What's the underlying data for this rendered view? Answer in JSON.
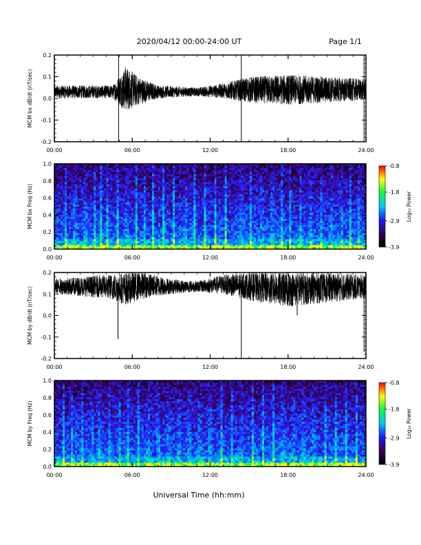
{
  "header": {
    "title": "2020/04/12  00:00-24:00 UT",
    "page": "Page 1/1"
  },
  "footer": {
    "xlabel": "Universal Time (hh:mm)"
  },
  "chart_data": [
    {
      "type": "line",
      "ylabel": "MCM bx dB/dt (nT/sec)",
      "xlim": [
        0,
        24
      ],
      "ylim": [
        -0.2,
        0.2
      ],
      "xticks": [
        "00:00",
        "06:00",
        "12:00",
        "18:00",
        "24:00"
      ],
      "yticks": [
        "-0.2",
        "-0.1",
        "0.0",
        "0.1",
        "0.2"
      ],
      "baseline": 0.03,
      "envelope": [
        {
          "x": 0,
          "lo": 0.0,
          "hi": 0.06
        },
        {
          "x": 4.5,
          "lo": 0.0,
          "hi": 0.06
        },
        {
          "x": 5.5,
          "lo": -0.06,
          "hi": 0.15
        },
        {
          "x": 6.5,
          "lo": -0.03,
          "hi": 0.1
        },
        {
          "x": 8.0,
          "lo": 0.0,
          "hi": 0.06
        },
        {
          "x": 11.0,
          "lo": 0.01,
          "hi": 0.05
        },
        {
          "x": 13.0,
          "lo": 0.0,
          "hi": 0.07
        },
        {
          "x": 15.0,
          "lo": -0.02,
          "hi": 0.1
        },
        {
          "x": 18.0,
          "lo": -0.03,
          "hi": 0.11
        },
        {
          "x": 21.0,
          "lo": -0.02,
          "hi": 0.1
        },
        {
          "x": 24.0,
          "lo": -0.01,
          "hi": 0.09
        }
      ],
      "spikes": [
        {
          "x": 4.95,
          "y": -0.2
        },
        {
          "x": 4.95,
          "y": 0.21
        },
        {
          "x": 14.4,
          "y": -0.2
        },
        {
          "x": 14.4,
          "y": 0.21
        },
        {
          "x": 23.85,
          "y": -0.2
        },
        {
          "x": 23.85,
          "y": 0.21
        }
      ]
    },
    {
      "type": "heatmap",
      "ylabel": "MCM bx Freq (Hz)",
      "xlim": [
        0,
        24
      ],
      "ylim": [
        0,
        1.0
      ],
      "xticks": [
        "00:00",
        "06:00",
        "12:00",
        "18:00",
        "24:00"
      ],
      "yticks": [
        "0.0",
        "0.2",
        "0.4",
        "0.6",
        "0.8",
        "1.0"
      ],
      "colorbar": {
        "label": "Log₁₀ Power",
        "range": [
          -3.9,
          -0.8
        ],
        "ticks": [
          "-0.8",
          "-1.8",
          "-2.9",
          "-3.9"
        ],
        "tick_values": [
          -0.8,
          -1.8,
          -2.9,
          -3.9
        ],
        "colors": [
          "#000000",
          "#3a0055",
          "#1a1aff",
          "#00c8ff",
          "#00ff40",
          "#ffff00",
          "#ff0000"
        ]
      },
      "bright_streaks_hours": [
        0.9,
        1.6,
        2.4,
        3.1,
        3.6,
        4.1,
        4.9,
        5.6,
        6.3,
        7.0,
        7.6,
        8.4,
        9.2,
        10.1,
        10.8,
        11.6,
        12.4,
        13.2,
        14.4,
        15.1,
        16.0,
        16.8,
        17.5,
        18.2,
        19.0,
        19.7,
        20.6,
        21.3,
        22.1,
        22.8,
        23.5
      ]
    },
    {
      "type": "line",
      "ylabel": "MCM by dB/dt (nT/sec)",
      "xlim": [
        0,
        24
      ],
      "ylim": [
        -0.2,
        0.2
      ],
      "xticks": [
        "00:00",
        "06:00",
        "12:00",
        "18:00",
        "24:00"
      ],
      "yticks": [
        "-0.2",
        "-0.1",
        "0.0",
        "0.1",
        "0.2"
      ],
      "baseline": 0.13,
      "envelope": [
        {
          "x": 0,
          "lo": 0.1,
          "hi": 0.17
        },
        {
          "x": 4.0,
          "lo": 0.08,
          "hi": 0.19
        },
        {
          "x": 5.5,
          "lo": 0.05,
          "hi": 0.2
        },
        {
          "x": 7.0,
          "lo": 0.08,
          "hi": 0.2
        },
        {
          "x": 9.0,
          "lo": 0.1,
          "hi": 0.17
        },
        {
          "x": 11.0,
          "lo": 0.11,
          "hi": 0.16
        },
        {
          "x": 13.0,
          "lo": 0.1,
          "hi": 0.19
        },
        {
          "x": 15.0,
          "lo": 0.07,
          "hi": 0.2
        },
        {
          "x": 18.0,
          "lo": 0.04,
          "hi": 0.2
        },
        {
          "x": 21.0,
          "lo": 0.06,
          "hi": 0.2
        },
        {
          "x": 24.0,
          "lo": 0.08,
          "hi": 0.19
        }
      ],
      "spikes": [
        {
          "x": 4.9,
          "y": -0.11
        },
        {
          "x": 14.4,
          "y": -0.2
        },
        {
          "x": 23.85,
          "y": -0.17
        },
        {
          "x": 18.7,
          "y": 0.0
        }
      ]
    },
    {
      "type": "heatmap",
      "ylabel": "MCM by Freq (Hz)",
      "xlim": [
        0,
        24
      ],
      "ylim": [
        0,
        1.0
      ],
      "xticks": [
        "00:00",
        "06:00",
        "12:00",
        "18:00",
        "24:00"
      ],
      "yticks": [
        "0.0",
        "0.2",
        "0.4",
        "0.6",
        "0.8",
        "1.0"
      ],
      "colorbar": {
        "label": "Log₁₀ Power",
        "range": [
          -3.9,
          -0.8
        ],
        "ticks": [
          "-0.8",
          "-1.8",
          "-2.9",
          "-3.9"
        ],
        "tick_values": [
          -0.8,
          -1.8,
          -2.9,
          -3.9
        ],
        "colors": [
          "#000000",
          "#3a0055",
          "#1a1aff",
          "#00c8ff",
          "#00ff40",
          "#ffff00",
          "#ff0000"
        ]
      },
      "bright_streaks_hours": [
        0.7,
        1.4,
        2.2,
        2.9,
        3.5,
        4.3,
        5.0,
        5.7,
        6.5,
        7.2,
        8.0,
        8.8,
        9.6,
        10.4,
        11.2,
        12.0,
        12.9,
        13.7,
        14.4,
        15.3,
        16.1,
        16.9,
        17.6,
        18.4,
        19.2,
        20.0,
        20.9,
        21.7,
        22.5,
        23.3
      ]
    }
  ]
}
